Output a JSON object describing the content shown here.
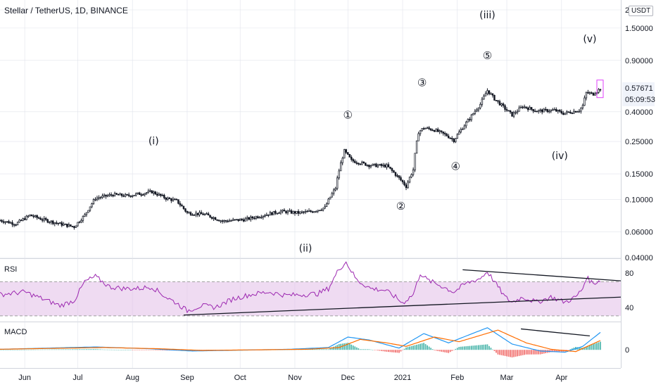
{
  "header": {
    "symbol": "Stellar / TetherUS, 1D, BINANCE",
    "currency": "USDT"
  },
  "price_badge": {
    "price": "0.57671",
    "countdown": "05:09:53",
    "color": "#e040fb"
  },
  "chart_data": [
    {
      "type": "candlestick",
      "scale": "log",
      "ylim": [
        0.04,
        2.0
      ],
      "y_ticks": [
        "2",
        "1.50000",
        "0.90000",
        "0.40000",
        "0.25000",
        "0.15000",
        "0.10000",
        "0.06000",
        "0.04000"
      ],
      "y_tick_values": [
        2.0,
        1.5,
        0.9,
        0.4,
        0.25,
        0.15,
        0.1,
        0.06,
        0.04
      ],
      "x_labels": [
        "Jun",
        "Jul",
        "Aug",
        "Sep",
        "Oct",
        "Nov",
        "Dec",
        "2021",
        "Feb",
        "Mar",
        "Apr"
      ],
      "x_label_days": [
        0,
        30,
        61,
        92,
        122,
        153,
        183,
        214,
        245,
        273,
        304
      ],
      "close_anchors": [
        {
          "day": -14,
          "close": 0.072
        },
        {
          "day": -5,
          "close": 0.068
        },
        {
          "day": 3,
          "close": 0.078
        },
        {
          "day": 10,
          "close": 0.073
        },
        {
          "day": 20,
          "close": 0.068
        },
        {
          "day": 28,
          "close": 0.065
        },
        {
          "day": 34,
          "close": 0.078
        },
        {
          "day": 40,
          "close": 0.102
        },
        {
          "day": 50,
          "close": 0.108
        },
        {
          "day": 58,
          "close": 0.106
        },
        {
          "day": 64,
          "close": 0.109
        },
        {
          "day": 72,
          "close": 0.113
        },
        {
          "day": 80,
          "close": 0.102
        },
        {
          "day": 86,
          "close": 0.098
        },
        {
          "day": 92,
          "close": 0.081
        },
        {
          "day": 102,
          "close": 0.079
        },
        {
          "day": 112,
          "close": 0.071
        },
        {
          "day": 125,
          "close": 0.073
        },
        {
          "day": 135,
          "close": 0.078
        },
        {
          "day": 145,
          "close": 0.083
        },
        {
          "day": 155,
          "close": 0.081
        },
        {
          "day": 163,
          "close": 0.083
        },
        {
          "day": 170,
          "close": 0.088
        },
        {
          "day": 176,
          "close": 0.12
        },
        {
          "day": 181,
          "close": 0.215
        },
        {
          "day": 185,
          "close": 0.185
        },
        {
          "day": 195,
          "close": 0.172
        },
        {
          "day": 205,
          "close": 0.17
        },
        {
          "day": 212,
          "close": 0.14
        },
        {
          "day": 216,
          "close": 0.123
        },
        {
          "day": 220,
          "close": 0.16
        },
        {
          "day": 223,
          "close": 0.29
        },
        {
          "day": 226,
          "close": 0.31
        },
        {
          "day": 232,
          "close": 0.3
        },
        {
          "day": 239,
          "close": 0.275
        },
        {
          "day": 243,
          "close": 0.255
        },
        {
          "day": 247,
          "close": 0.3
        },
        {
          "day": 252,
          "close": 0.36
        },
        {
          "day": 258,
          "close": 0.45
        },
        {
          "day": 262,
          "close": 0.56
        },
        {
          "day": 266,
          "close": 0.49
        },
        {
          "day": 272,
          "close": 0.42
        },
        {
          "day": 276,
          "close": 0.38
        },
        {
          "day": 282,
          "close": 0.435
        },
        {
          "day": 290,
          "close": 0.405
        },
        {
          "day": 300,
          "close": 0.41
        },
        {
          "day": 305,
          "close": 0.39
        },
        {
          "day": 310,
          "close": 0.4
        },
        {
          "day": 314,
          "close": 0.41
        },
        {
          "day": 316,
          "close": 0.44
        },
        {
          "day": 318,
          "close": 0.54
        },
        {
          "day": 322,
          "close": 0.53
        },
        {
          "day": 326,
          "close": 0.577
        }
      ],
      "wave_labels": [
        {
          "text": "(i)",
          "day": 73,
          "price": 0.24
        },
        {
          "text": "(ii)",
          "day": 159,
          "price": 0.044
        },
        {
          "text": "(iii)",
          "day": 262,
          "price": 1.75
        },
        {
          "text": "(iv)",
          "day": 303,
          "price": 0.19
        },
        {
          "text": "(v)",
          "day": 320,
          "price": 1.2
        },
        {
          "text": "①",
          "day": 183,
          "price": 0.36
        },
        {
          "text": "②",
          "day": 213,
          "price": 0.085
        },
        {
          "text": "③",
          "day": 225,
          "price": 0.6
        },
        {
          "text": "④",
          "day": 244,
          "price": 0.16
        },
        {
          "text": "⑤",
          "day": 262,
          "price": 0.92
        }
      ],
      "colors": {
        "up": "#26a69a",
        "down": "#ef5350",
        "candle": "#131722",
        "grid": "#e0e3eb"
      }
    },
    {
      "type": "line",
      "name": "RSI",
      "ylim": [
        25,
        95
      ],
      "y_ticks": [
        "80",
        "40"
      ],
      "y_tick_values": [
        80,
        40
      ],
      "band": [
        30,
        70
      ],
      "anchors": [
        {
          "day": -14,
          "v": 55
        },
        {
          "day": 0,
          "v": 58
        },
        {
          "day": 10,
          "v": 50
        },
        {
          "day": 20,
          "v": 42
        },
        {
          "day": 28,
          "v": 48
        },
        {
          "day": 34,
          "v": 70
        },
        {
          "day": 40,
          "v": 76
        },
        {
          "day": 48,
          "v": 64
        },
        {
          "day": 56,
          "v": 62
        },
        {
          "day": 64,
          "v": 62
        },
        {
          "day": 72,
          "v": 64
        },
        {
          "day": 80,
          "v": 52
        },
        {
          "day": 86,
          "v": 45
        },
        {
          "day": 92,
          "v": 36
        },
        {
          "day": 100,
          "v": 42
        },
        {
          "day": 108,
          "v": 40
        },
        {
          "day": 118,
          "v": 50
        },
        {
          "day": 128,
          "v": 55
        },
        {
          "day": 138,
          "v": 58
        },
        {
          "day": 148,
          "v": 54
        },
        {
          "day": 158,
          "v": 55
        },
        {
          "day": 166,
          "v": 56
        },
        {
          "day": 172,
          "v": 62
        },
        {
          "day": 178,
          "v": 85
        },
        {
          "day": 182,
          "v": 93
        },
        {
          "day": 188,
          "v": 72
        },
        {
          "day": 196,
          "v": 62
        },
        {
          "day": 204,
          "v": 60
        },
        {
          "day": 210,
          "v": 52
        },
        {
          "day": 214,
          "v": 45
        },
        {
          "day": 220,
          "v": 55
        },
        {
          "day": 224,
          "v": 80
        },
        {
          "day": 228,
          "v": 72
        },
        {
          "day": 236,
          "v": 65
        },
        {
          "day": 243,
          "v": 58
        },
        {
          "day": 250,
          "v": 68
        },
        {
          "day": 258,
          "v": 74
        },
        {
          "day": 262,
          "v": 82
        },
        {
          "day": 268,
          "v": 64
        },
        {
          "day": 272,
          "v": 52
        },
        {
          "day": 276,
          "v": 46
        },
        {
          "day": 282,
          "v": 52
        },
        {
          "day": 290,
          "v": 46
        },
        {
          "day": 298,
          "v": 52
        },
        {
          "day": 306,
          "v": 46
        },
        {
          "day": 312,
          "v": 52
        },
        {
          "day": 316,
          "v": 62
        },
        {
          "day": 318,
          "v": 75
        },
        {
          "day": 322,
          "v": 68
        },
        {
          "day": 326,
          "v": 72
        }
      ],
      "color": "#9c27b0",
      "band_color": "#e1bee7"
    },
    {
      "type": "macd",
      "name": "MACD",
      "ylim": [
        -0.03,
        0.045
      ],
      "y_ticks": [
        "0"
      ],
      "y_tick_values": [
        0
      ],
      "macd_anchors": [
        {
          "day": -14,
          "v": 0.001
        },
        {
          "day": 40,
          "v": 0.005
        },
        {
          "day": 70,
          "v": 0.002
        },
        {
          "day": 95,
          "v": -0.002
        },
        {
          "day": 150,
          "v": 0.001
        },
        {
          "day": 172,
          "v": 0.004
        },
        {
          "day": 183,
          "v": 0.022
        },
        {
          "day": 195,
          "v": 0.017
        },
        {
          "day": 212,
          "v": 0.003
        },
        {
          "day": 226,
          "v": 0.028
        },
        {
          "day": 240,
          "v": 0.012
        },
        {
          "day": 262,
          "v": 0.038
        },
        {
          "day": 276,
          "v": 0.01
        },
        {
          "day": 292,
          "v": -0.002
        },
        {
          "day": 306,
          "v": -0.004
        },
        {
          "day": 316,
          "v": 0.006
        },
        {
          "day": 326,
          "v": 0.03
        }
      ],
      "signal_anchors": [
        {
          "day": -14,
          "v": 0.001
        },
        {
          "day": 45,
          "v": 0.004
        },
        {
          "day": 75,
          "v": 0.002
        },
        {
          "day": 100,
          "v": -0.001
        },
        {
          "day": 160,
          "v": 0.001
        },
        {
          "day": 178,
          "v": 0.004
        },
        {
          "day": 190,
          "v": 0.018
        },
        {
          "day": 205,
          "v": 0.012
        },
        {
          "day": 216,
          "v": 0.006
        },
        {
          "day": 232,
          "v": 0.022
        },
        {
          "day": 246,
          "v": 0.014
        },
        {
          "day": 268,
          "v": 0.034
        },
        {
          "day": 284,
          "v": 0.012
        },
        {
          "day": 298,
          "v": 0.001
        },
        {
          "day": 312,
          "v": -0.003
        },
        {
          "day": 326,
          "v": 0.016
        }
      ],
      "macd_color": "#2196f3",
      "signal_color": "#ff6d00",
      "hist_up_color": "#26a69a",
      "hist_down_color": "#ef5350"
    }
  ]
}
